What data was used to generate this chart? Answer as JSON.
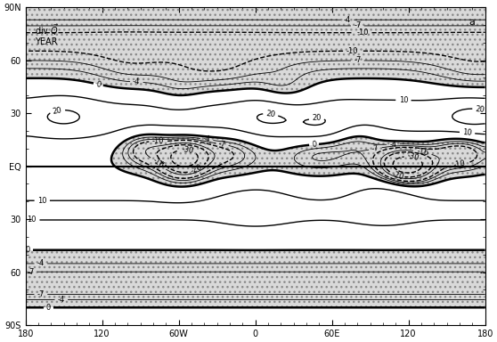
{
  "figsize": [
    5.58,
    3.84
  ],
  "dpi": 100,
  "xlim": [
    -180,
    180
  ],
  "ylim": [
    -90,
    90
  ],
  "xtick_vals": [
    -180,
    -120,
    -60,
    0,
    60,
    120,
    180
  ],
  "xtick_labels": [
    "180",
    "120",
    "60W",
    "0",
    "60E",
    "120",
    "180"
  ],
  "ytick_vals": [
    -90,
    -60,
    -30,
    0,
    30,
    60,
    90
  ],
  "ytick_labels": [
    "90S",
    "60",
    "30",
    "EQ",
    "30",
    "60",
    "90N"
  ],
  "stipple_color": "#bbbbbb",
  "line_color": "#000000",
  "label_main": "div $\\vec{Q}$",
  "label_sub": "YEAR",
  "panel_label": "a",
  "eq_linewidth": 1.5,
  "zero_linewidth": 1.8,
  "bold_linewidth": 1.0,
  "thin_linewidth": 0.6,
  "fontsize_ticks": 7,
  "fontsize_labels": 7,
  "fontsize_clabel": 6
}
